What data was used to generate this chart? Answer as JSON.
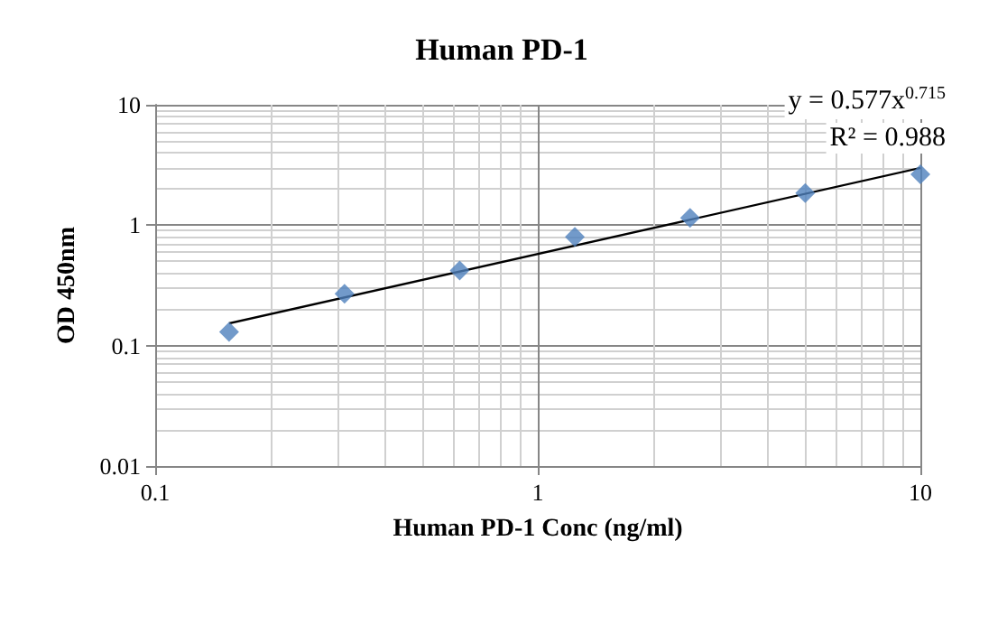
{
  "chart_data": {
    "type": "scatter",
    "title": "Human PD-1",
    "xlabel": "Human PD-1 Conc (ng/ml)",
    "ylabel": "OD 450nm",
    "x": [
      0.156,
      0.3125,
      0.625,
      1.25,
      2.5,
      5,
      10
    ],
    "series": [
      {
        "color": "#4f81bd",
        "marker": "diamond",
        "values": [
          0.13,
          0.27,
          0.42,
          0.8,
          1.15,
          1.85,
          2.65
        ]
      },
      {
        "type": "line",
        "color": "#000000",
        "marker": "none",
        "x": [
          0.156,
          10
        ],
        "values": [
          0.153,
          2.99
        ]
      }
    ],
    "log": "xy",
    "xlim": [
      0.1,
      10
    ],
    "ylim": [
      0.01,
      10
    ],
    "xticks": [
      0.1,
      1,
      10
    ],
    "yticks": [
      0.01,
      0.1,
      1,
      10
    ],
    "grid": true,
    "annotations": [
      "y = 0.577x$^{0.715}$",
      "R² = 0.988"
    ]
  }
}
